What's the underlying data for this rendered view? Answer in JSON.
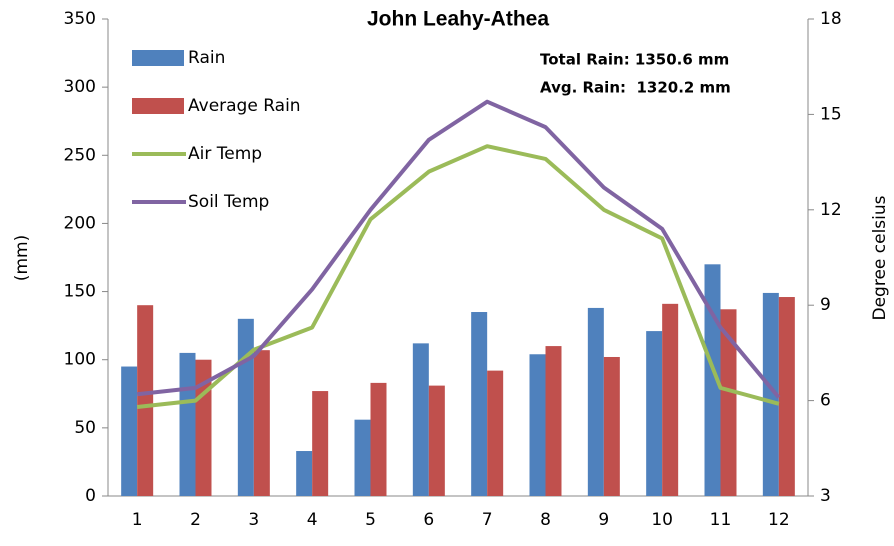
{
  "chart_data": {
    "type": "bar",
    "title": "John Leahy-Athea",
    "annotations": [
      "Total Rain: 1350.6 mm",
      "Avg. Rain:  1320.2 mm"
    ],
    "y_label": "(mm)",
    "y2_label": "Degree celsius",
    "categories": [
      "1",
      "2",
      "3",
      "4",
      "5",
      "6",
      "7",
      "8",
      "9",
      "10",
      "11",
      "12"
    ],
    "series": [
      {
        "name": "Rain",
        "type": "bar",
        "color": "#4f81bd",
        "values": [
          95,
          105,
          130,
          33,
          56,
          112,
          135,
          104,
          138,
          121,
          170,
          149
        ]
      },
      {
        "name": "Average Rain",
        "type": "bar",
        "color": "#c0504d",
        "values": [
          140,
          100,
          107,
          77,
          83,
          81,
          92,
          110,
          102,
          141,
          137,
          146
        ]
      },
      {
        "name": "Air Temp",
        "type": "line",
        "axis": "y2",
        "color": "#9bbb59",
        "values": [
          5.8,
          6.0,
          7.6,
          8.3,
          11.7,
          13.2,
          14.0,
          13.6,
          12.0,
          11.1,
          6.4,
          5.9
        ]
      },
      {
        "name": "Soil Temp",
        "type": "line",
        "axis": "y2",
        "color": "#8064a2",
        "values": [
          6.2,
          6.4,
          7.4,
          9.5,
          12.0,
          14.2,
          15.4,
          14.6,
          12.7,
          11.4,
          8.3,
          6.1
        ]
      }
    ],
    "ylim": [
      0,
      350
    ],
    "yticks": [
      0,
      50,
      100,
      150,
      200,
      250,
      300,
      350
    ],
    "y2lim": [
      3,
      18
    ],
    "y2ticks": [
      3,
      6,
      9,
      12,
      15,
      18
    ],
    "legend": "upper left"
  }
}
